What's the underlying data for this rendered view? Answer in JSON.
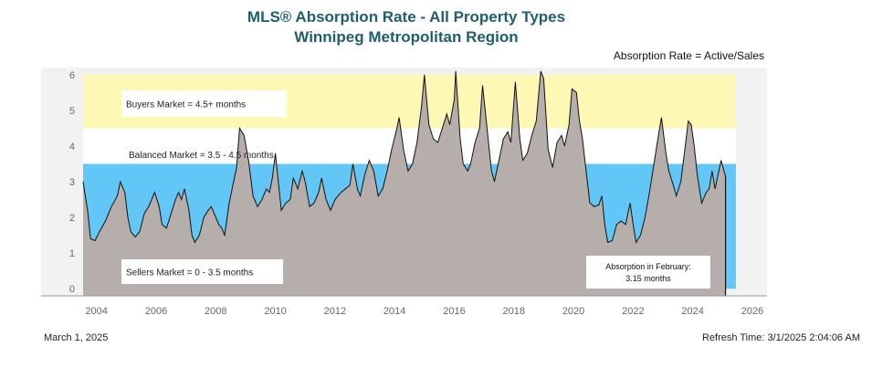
{
  "header": {
    "title_line1": "MLS® Absorption Rate - All Property Types",
    "title_line2": "Winnipeg Metropolitan Region",
    "formula": "Absorption Rate = Active/Sales"
  },
  "footer": {
    "date": "March 1, 2025",
    "refresh": "Refresh Time: 3/1/2025 2:04:06 AM"
  },
  "colors": {
    "buyers_zone": "#fdf8b4",
    "balanced_zone": "#ffffff",
    "sellers_zone": "#62c6f6",
    "area_fill": "#b6aeaa",
    "line": "#111111",
    "title": "#1f5f6b"
  },
  "chart_data": {
    "type": "area",
    "title": "MLS® Absorption Rate - All Property Types",
    "subtitle": "Winnipeg Metropolitan Region",
    "xlabel": "",
    "ylabel": "",
    "xlim": [
      2003.55,
      2025.45
    ],
    "ylim": [
      -0.2,
      6.2
    ],
    "y_ticks": [
      0,
      1,
      2,
      3,
      4,
      5,
      6
    ],
    "x_ticks": [
      2004,
      2006,
      2008,
      2010,
      2012,
      2014,
      2016,
      2018,
      2020,
      2022,
      2024,
      2026
    ],
    "grid": false,
    "zones": [
      {
        "label": "Sellers Market = 0 - 3.5 months",
        "from": 0,
        "to": 3.5
      },
      {
        "label": "Balanced Market = 3.5 - 4.5 months",
        "from": 3.5,
        "to": 4.5
      },
      {
        "label": "Buyers Market = 4.5+ months",
        "from": 4.5,
        "to": 6.0
      }
    ],
    "annotation": {
      "line1": "Absorption in February:",
      "line2": "3.15 months",
      "value": 3.15
    },
    "series": [
      {
        "points": [
          [
            2003.55,
            3.0
          ],
          [
            2003.7,
            2.2
          ],
          [
            2003.8,
            1.4
          ],
          [
            2003.95,
            1.35
          ],
          [
            2004.1,
            1.6
          ],
          [
            2004.3,
            1.9
          ],
          [
            2004.5,
            2.3
          ],
          [
            2004.7,
            2.6
          ],
          [
            2004.8,
            3.0
          ],
          [
            2004.95,
            2.7
          ],
          [
            2005.05,
            2.0
          ],
          [
            2005.15,
            1.6
          ],
          [
            2005.3,
            1.45
          ],
          [
            2005.45,
            1.6
          ],
          [
            2005.6,
            2.1
          ],
          [
            2005.75,
            2.3
          ],
          [
            2005.85,
            2.5
          ],
          [
            2005.95,
            2.7
          ],
          [
            2006.1,
            2.3
          ],
          [
            2006.2,
            1.8
          ],
          [
            2006.35,
            1.7
          ],
          [
            2006.5,
            2.1
          ],
          [
            2006.65,
            2.5
          ],
          [
            2006.75,
            2.7
          ],
          [
            2006.85,
            2.5
          ],
          [
            2006.95,
            2.8
          ],
          [
            2007.1,
            2.2
          ],
          [
            2007.2,
            1.5
          ],
          [
            2007.3,
            1.3
          ],
          [
            2007.45,
            1.5
          ],
          [
            2007.6,
            2.0
          ],
          [
            2007.75,
            2.2
          ],
          [
            2007.85,
            2.3
          ],
          [
            2007.95,
            2.1
          ],
          [
            2008.1,
            1.8
          ],
          [
            2008.2,
            1.7
          ],
          [
            2008.3,
            1.5
          ],
          [
            2008.45,
            2.4
          ],
          [
            2008.55,
            2.8
          ],
          [
            2008.7,
            3.4
          ],
          [
            2008.8,
            4.5
          ],
          [
            2008.95,
            4.3
          ],
          [
            2009.1,
            3.6
          ],
          [
            2009.25,
            2.6
          ],
          [
            2009.4,
            2.3
          ],
          [
            2009.55,
            2.5
          ],
          [
            2009.7,
            2.8
          ],
          [
            2009.8,
            2.7
          ],
          [
            2009.9,
            3.1
          ],
          [
            2010.0,
            3.8
          ],
          [
            2010.1,
            3.0
          ],
          [
            2010.2,
            2.2
          ],
          [
            2010.35,
            2.4
          ],
          [
            2010.5,
            2.5
          ],
          [
            2010.6,
            3.1
          ],
          [
            2010.75,
            2.8
          ],
          [
            2010.9,
            3.3
          ],
          [
            2011.0,
            3.0
          ],
          [
            2011.15,
            2.3
          ],
          [
            2011.3,
            2.4
          ],
          [
            2011.45,
            2.7
          ],
          [
            2011.55,
            3.1
          ],
          [
            2011.7,
            2.5
          ],
          [
            2011.85,
            2.2
          ],
          [
            2012.0,
            2.5
          ],
          [
            2012.2,
            2.7
          ],
          [
            2012.35,
            2.8
          ],
          [
            2012.5,
            2.9
          ],
          [
            2012.6,
            3.5
          ],
          [
            2012.75,
            2.8
          ],
          [
            2012.85,
            2.6
          ],
          [
            2013.0,
            3.2
          ],
          [
            2013.15,
            3.6
          ],
          [
            2013.3,
            3.3
          ],
          [
            2013.45,
            2.6
          ],
          [
            2013.6,
            2.8
          ],
          [
            2013.75,
            3.3
          ],
          [
            2013.9,
            3.9
          ],
          [
            2014.05,
            4.4
          ],
          [
            2014.15,
            4.8
          ],
          [
            2014.3,
            3.9
          ],
          [
            2014.45,
            3.3
          ],
          [
            2014.6,
            3.5
          ],
          [
            2014.75,
            4.1
          ],
          [
            2014.9,
            5.1
          ],
          [
            2015.0,
            6.0
          ],
          [
            2015.15,
            4.6
          ],
          [
            2015.3,
            4.2
          ],
          [
            2015.45,
            4.1
          ],
          [
            2015.6,
            4.5
          ],
          [
            2015.75,
            4.9
          ],
          [
            2015.85,
            4.6
          ],
          [
            2016.0,
            5.3
          ],
          [
            2016.05,
            6.1
          ],
          [
            2016.2,
            4.2
          ],
          [
            2016.3,
            3.5
          ],
          [
            2016.45,
            3.3
          ],
          [
            2016.55,
            3.5
          ],
          [
            2016.7,
            4.1
          ],
          [
            2016.85,
            4.5
          ],
          [
            2016.95,
            5.7
          ],
          [
            2017.1,
            4.5
          ],
          [
            2017.25,
            3.3
          ],
          [
            2017.35,
            3.0
          ],
          [
            2017.5,
            3.6
          ],
          [
            2017.65,
            4.2
          ],
          [
            2017.8,
            4.4
          ],
          [
            2017.9,
            4.1
          ],
          [
            2018.05,
            5.8
          ],
          [
            2018.2,
            4.2
          ],
          [
            2018.3,
            3.6
          ],
          [
            2018.45,
            3.8
          ],
          [
            2018.6,
            4.3
          ],
          [
            2018.75,
            4.7
          ],
          [
            2018.9,
            6.1
          ],
          [
            2019.0,
            5.9
          ],
          [
            2019.15,
            3.9
          ],
          [
            2019.3,
            3.4
          ],
          [
            2019.45,
            4.1
          ],
          [
            2019.6,
            4.3
          ],
          [
            2019.7,
            4.0
          ],
          [
            2019.85,
            4.6
          ],
          [
            2019.95,
            5.6
          ],
          [
            2020.1,
            5.5
          ],
          [
            2020.2,
            4.7
          ],
          [
            2020.3,
            4.2
          ],
          [
            2020.45,
            3.1
          ],
          [
            2020.55,
            2.4
          ],
          [
            2020.7,
            2.3
          ],
          [
            2020.85,
            2.35
          ],
          [
            2020.95,
            2.6
          ],
          [
            2021.05,
            1.8
          ],
          [
            2021.15,
            1.3
          ],
          [
            2021.3,
            1.35
          ],
          [
            2021.45,
            1.8
          ],
          [
            2021.6,
            1.9
          ],
          [
            2021.75,
            1.8
          ],
          [
            2021.9,
            2.4
          ],
          [
            2022.0,
            1.8
          ],
          [
            2022.1,
            1.3
          ],
          [
            2022.25,
            1.5
          ],
          [
            2022.4,
            2.0
          ],
          [
            2022.55,
            2.7
          ],
          [
            2022.7,
            3.5
          ],
          [
            2022.85,
            4.3
          ],
          [
            2022.95,
            4.8
          ],
          [
            2023.1,
            3.8
          ],
          [
            2023.2,
            3.3
          ],
          [
            2023.35,
            2.9
          ],
          [
            2023.45,
            2.6
          ],
          [
            2023.6,
            3.0
          ],
          [
            2023.75,
            4.0
          ],
          [
            2023.85,
            4.7
          ],
          [
            2023.95,
            4.6
          ],
          [
            2024.05,
            4.0
          ],
          [
            2024.15,
            3.2
          ],
          [
            2024.3,
            2.4
          ],
          [
            2024.45,
            2.7
          ],
          [
            2024.55,
            2.8
          ],
          [
            2024.65,
            3.3
          ],
          [
            2024.75,
            2.8
          ],
          [
            2024.85,
            3.2
          ],
          [
            2024.95,
            3.6
          ],
          [
            2025.05,
            3.3
          ],
          [
            2025.1,
            3.15
          ]
        ]
      }
    ]
  }
}
